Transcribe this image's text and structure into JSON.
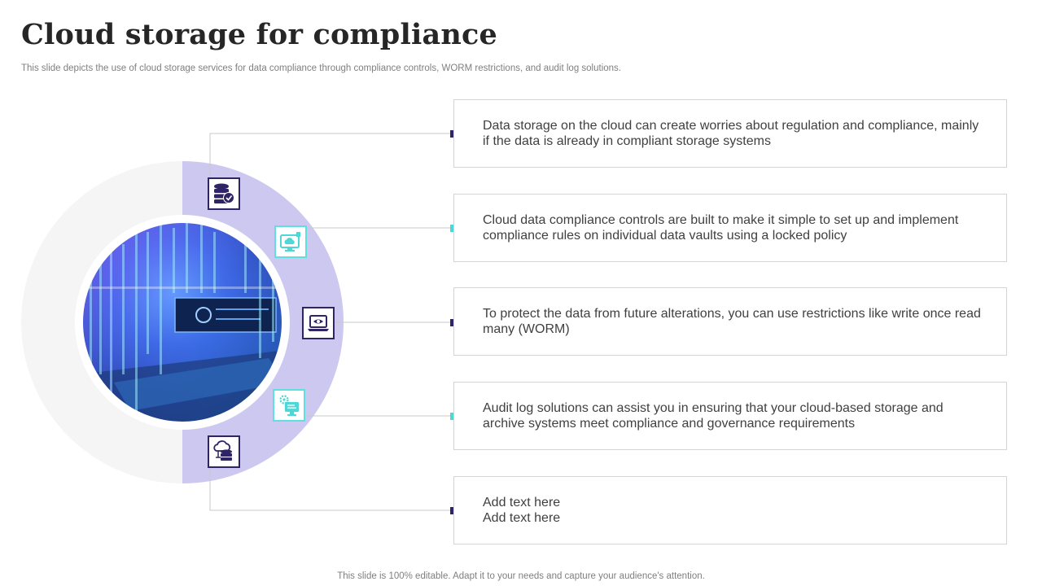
{
  "slide": {
    "title": "Cloud storage for compliance",
    "subtitle": "This slide depicts the use of cloud storage services for data compliance through compliance controls, WORM restrictions, and audit log solutions.",
    "footer": "This slide is 100% editable. Adapt it to your needs and capture your audience's attention."
  },
  "colors": {
    "dark_accent": "#2e2466",
    "teal_accent": "#4fd6d6",
    "ring": "#cdc8f0",
    "ring_bg": "#f5f5f5"
  },
  "items": [
    {
      "text": "Data storage on the cloud can create worries about regulation and compliance, mainly if the data is already in compliant storage systems",
      "icon": "database-check-icon",
      "marker": "dark"
    },
    {
      "text": "Cloud data compliance controls are built to make it simple to set up and implement compliance rules on individual data vaults using a locked policy",
      "icon": "cloud-monitor-icon",
      "marker": "teal"
    },
    {
      "text": "To protect the data from future  alterations, you can use restrictions like write once read many (WORM)",
      "icon": "laptop-eye-icon",
      "marker": "dark"
    },
    {
      "text": "Audit log solutions  can assist you in ensuring that your cloud-based storage and archive systems meet compliance and governance  requirements",
      "icon": "gear-monitor-icon",
      "marker": "teal"
    },
    {
      "text": "Add text here\nAdd text here",
      "icon": "cloud-database-icon",
      "marker": "dark"
    }
  ]
}
